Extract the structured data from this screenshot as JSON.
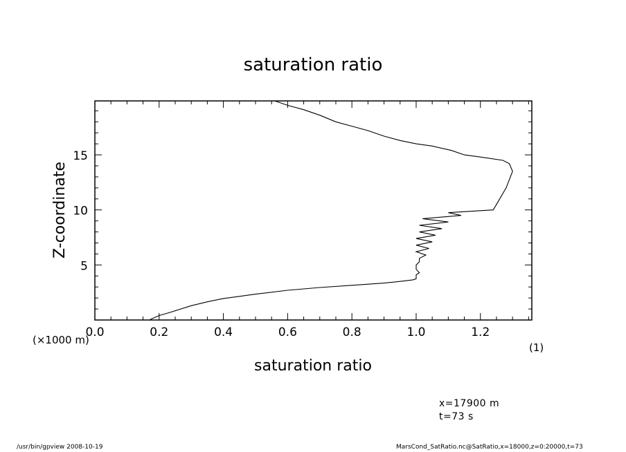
{
  "chart_data": {
    "type": "line",
    "title": "saturation ratio",
    "xlabel": "saturation ratio",
    "ylabel": "Z-coordinate",
    "x_unit_label": "(1)",
    "y_unit_label": "(×1000 m)",
    "xlim": [
      0.0,
      1.36
    ],
    "ylim": [
      0.0,
      19.9
    ],
    "x_ticks": [
      0.0,
      0.2,
      0.4,
      0.6,
      0.8,
      1.0,
      1.2
    ],
    "x_tick_labels": [
      "0.0",
      "0.2",
      "0.4",
      "0.6",
      "0.8",
      "1.0",
      "1.2"
    ],
    "y_ticks": [
      5,
      10,
      15
    ],
    "y_tick_labels": [
      "5",
      "10",
      "15"
    ],
    "grid": false,
    "series": [
      {
        "name": "",
        "points": [
          [
            0.17,
            0.0
          ],
          [
            0.18,
            0.15
          ],
          [
            0.2,
            0.4
          ],
          [
            0.24,
            0.75
          ],
          [
            0.3,
            1.3
          ],
          [
            0.35,
            1.65
          ],
          [
            0.4,
            1.95
          ],
          [
            0.45,
            2.15
          ],
          [
            0.5,
            2.35
          ],
          [
            0.6,
            2.7
          ],
          [
            0.7,
            2.95
          ],
          [
            0.8,
            3.15
          ],
          [
            0.9,
            3.35
          ],
          [
            0.95,
            3.5
          ],
          [
            0.99,
            3.65
          ],
          [
            1.0,
            3.75
          ],
          [
            1.0,
            4.1
          ],
          [
            1.01,
            4.3
          ],
          [
            1.0,
            4.6
          ],
          [
            1.0,
            5.0
          ],
          [
            1.01,
            5.3
          ],
          [
            1.01,
            5.6
          ],
          [
            1.03,
            5.9
          ],
          [
            1.0,
            6.2
          ],
          [
            1.04,
            6.5
          ],
          [
            1.0,
            6.8
          ],
          [
            1.05,
            7.1
          ],
          [
            1.0,
            7.4
          ],
          [
            1.06,
            7.7
          ],
          [
            1.01,
            8.0
          ],
          [
            1.08,
            8.3
          ],
          [
            1.01,
            8.6
          ],
          [
            1.1,
            8.9
          ],
          [
            1.02,
            9.2
          ],
          [
            1.14,
            9.5
          ],
          [
            1.1,
            9.75
          ],
          [
            1.24,
            10.0
          ],
          [
            1.26,
            11.0
          ],
          [
            1.28,
            12.0
          ],
          [
            1.3,
            13.5
          ],
          [
            1.29,
            14.2
          ],
          [
            1.27,
            14.5
          ],
          [
            1.2,
            14.8
          ],
          [
            1.15,
            15.0
          ],
          [
            1.11,
            15.4
          ],
          [
            1.05,
            15.8
          ],
          [
            1.0,
            16.0
          ],
          [
            0.95,
            16.3
          ],
          [
            0.9,
            16.7
          ],
          [
            0.85,
            17.2
          ],
          [
            0.8,
            17.6
          ],
          [
            0.75,
            18.0
          ],
          [
            0.7,
            18.6
          ],
          [
            0.65,
            19.1
          ],
          [
            0.6,
            19.5
          ],
          [
            0.56,
            19.9
          ]
        ]
      }
    ]
  },
  "annotations": {
    "position_x": "x=17900  m",
    "time": "t=73  s"
  },
  "footer": {
    "left": "/usr/bin/gpview   2008-10-19",
    "right": "MarsCond_SatRatio.nc@SatRatio,x=18000,z=0:20000,t=73"
  }
}
